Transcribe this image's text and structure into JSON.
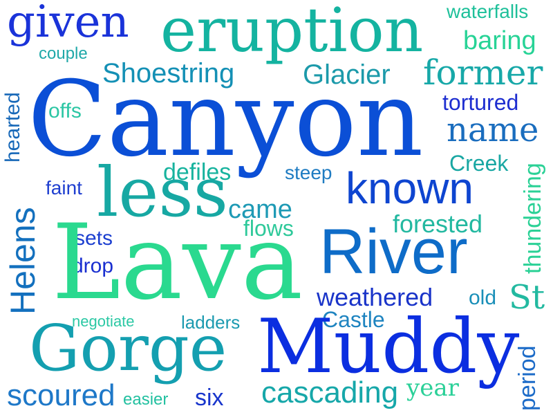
{
  "words": [
    {
      "text": "given",
      "color": "#1a33d9"
    },
    {
      "text": "eruption",
      "color": "#14b3a0"
    },
    {
      "text": "waterfalls",
      "color": "#1ec09a"
    },
    {
      "text": "couple",
      "color": "#1fa8a8"
    },
    {
      "text": "baring",
      "color": "#27d396"
    },
    {
      "text": "Shoestring",
      "color": "#1490b5"
    },
    {
      "text": "Glacier",
      "color": "#1c9aaa"
    },
    {
      "text": "former",
      "color": "#17a8a8"
    },
    {
      "text": "hearted",
      "color": "#1768b8"
    },
    {
      "text": "offs",
      "color": "#2cc6a4"
    },
    {
      "text": "Canyon",
      "color": "#0b4fd6"
    },
    {
      "text": "tortured",
      "color": "#1e2ed0"
    },
    {
      "text": "name",
      "color": "#1a6dbe"
    },
    {
      "text": "defiles",
      "color": "#17b39e"
    },
    {
      "text": "steep",
      "color": "#1f7cc2"
    },
    {
      "text": "Creek",
      "color": "#19a7a3"
    },
    {
      "text": "faint",
      "color": "#1f3fd0"
    },
    {
      "text": "less",
      "color": "#17a8a3"
    },
    {
      "text": "known",
      "color": "#0e45d0"
    },
    {
      "text": "thundering",
      "color": "#2bd196"
    },
    {
      "text": "Helens",
      "color": "#1370be"
    },
    {
      "text": "came",
      "color": "#1e9ab5"
    },
    {
      "text": "flows",
      "color": "#2ec99a"
    },
    {
      "text": "forested",
      "color": "#22b8a0"
    },
    {
      "text": "sets",
      "color": "#1c3fd0"
    },
    {
      "text": "drop",
      "color": "#1a2fd0"
    },
    {
      "text": "Lava",
      "color": "#2ad98f"
    },
    {
      "text": "River",
      "color": "#0e6cc8"
    },
    {
      "text": "weathered",
      "color": "#1a34c9"
    },
    {
      "text": "old",
      "color": "#1a8fb8"
    },
    {
      "text": "St",
      "color": "#22b9a0"
    },
    {
      "text": "negotiate",
      "color": "#2bc8a4"
    },
    {
      "text": "ladders",
      "color": "#1b9ab0"
    },
    {
      "text": "Castle",
      "color": "#1e84c0"
    },
    {
      "text": "Gorge",
      "color": "#149fb0"
    },
    {
      "text": "Muddy",
      "color": "#0b2ee0"
    },
    {
      "text": "period",
      "color": "#1c6bc8"
    },
    {
      "text": "scoured",
      "color": "#1e78c8"
    },
    {
      "text": "easier",
      "color": "#22c0a0"
    },
    {
      "text": "six",
      "color": "#1835cc"
    },
    {
      "text": "cascading",
      "color": "#16a7a9"
    },
    {
      "text": "year",
      "color": "#2bd098"
    }
  ]
}
